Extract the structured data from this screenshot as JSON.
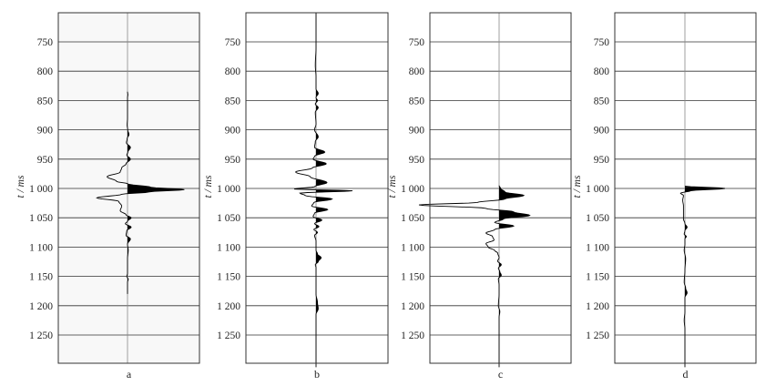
{
  "chart_data": [
    {
      "type": "line",
      "panel_label": "a",
      "ylabel": "t / ms",
      "ylim": [
        700,
        1310
      ],
      "y_inverted": true,
      "yticks": [
        750,
        800,
        850,
        900,
        950,
        1000,
        1050,
        1100,
        1150,
        1200,
        1250
      ],
      "ytick_labels": [
        "750",
        "800",
        "850",
        "900",
        "950",
        "1 000",
        "1 050",
        "1 100",
        "1 150",
        "1 200",
        "1 250"
      ],
      "grid": true,
      "background": "#f8f8f8",
      "trace": [
        [
          835,
          0
        ],
        [
          840,
          0.5
        ],
        [
          845,
          0
        ],
        [
          880,
          0
        ],
        [
          892,
          -0.5
        ],
        [
          900,
          0.3
        ],
        [
          908,
          2
        ],
        [
          915,
          -0.5
        ],
        [
          922,
          -1.5
        ],
        [
          930,
          4
        ],
        [
          938,
          0.5
        ],
        [
          943,
          -1
        ],
        [
          950,
          4
        ],
        [
          958,
          -2
        ],
        [
          965,
          -8
        ],
        [
          972,
          -10
        ],
        [
          980,
          -28
        ],
        [
          988,
          -15
        ],
        [
          992,
          0
        ],
        [
          998,
          32
        ],
        [
          1002,
          78
        ],
        [
          1006,
          30
        ],
        [
          1010,
          -8
        ],
        [
          1016,
          -42
        ],
        [
          1022,
          -12
        ],
        [
          1030,
          -8
        ],
        [
          1038,
          -10
        ],
        [
          1045,
          -2
        ],
        [
          1050,
          5
        ],
        [
          1056,
          0
        ],
        [
          1060,
          -3
        ],
        [
          1066,
          5
        ],
        [
          1072,
          -1
        ],
        [
          1080,
          -2
        ],
        [
          1086,
          4
        ],
        [
          1095,
          0
        ],
        [
          1105,
          1
        ],
        [
          1120,
          0
        ],
        [
          1145,
          0
        ],
        [
          1150,
          -1
        ],
        [
          1155,
          1
        ],
        [
          1160,
          0
        ],
        [
          1180,
          0
        ]
      ]
    },
    {
      "type": "line",
      "panel_label": "b",
      "ylabel": "t / ms",
      "ylim": [
        700,
        1310
      ],
      "y_inverted": true,
      "yticks": [
        750,
        800,
        850,
        900,
        950,
        1000,
        1050,
        1100,
        1150,
        1200,
        1250
      ],
      "ytick_labels": [
        "750",
        "800",
        "850",
        "900",
        "950",
        "1 000",
        "1 050",
        "1 100",
        "1 150",
        "1 200",
        "1 250"
      ],
      "grid": true,
      "background": "#ffffff",
      "trace": [
        [
          700,
          0
        ],
        [
          760,
          0
        ],
        [
          790,
          -1
        ],
        [
          810,
          0
        ],
        [
          830,
          0
        ],
        [
          838,
          3
        ],
        [
          845,
          0
        ],
        [
          850,
          2
        ],
        [
          856,
          -1
        ],
        [
          862,
          3
        ],
        [
          870,
          -1
        ],
        [
          890,
          0
        ],
        [
          900,
          -2
        ],
        [
          912,
          3
        ],
        [
          920,
          -1
        ],
        [
          930,
          -2
        ],
        [
          938,
          12
        ],
        [
          945,
          -2
        ],
        [
          950,
          -4
        ],
        [
          958,
          14
        ],
        [
          965,
          -5
        ],
        [
          972,
          -28
        ],
        [
          980,
          -8
        ],
        [
          990,
          15
        ],
        [
          997,
          -2
        ],
        [
          1001,
          -30
        ],
        [
          1004,
          50
        ],
        [
          1008,
          -22
        ],
        [
          1012,
          -15
        ],
        [
          1018,
          22
        ],
        [
          1024,
          -3
        ],
        [
          1030,
          -6
        ],
        [
          1036,
          16
        ],
        [
          1042,
          -2
        ],
        [
          1048,
          -4
        ],
        [
          1054,
          8
        ],
        [
          1060,
          -2
        ],
        [
          1065,
          4
        ],
        [
          1070,
          -3
        ],
        [
          1075,
          2
        ],
        [
          1080,
          -2
        ],
        [
          1090,
          0
        ],
        [
          1105,
          0
        ],
        [
          1112,
          2
        ],
        [
          1118,
          7
        ],
        [
          1125,
          3
        ],
        [
          1130,
          -1
        ],
        [
          1135,
          0
        ],
        [
          1180,
          0
        ],
        [
          1195,
          2
        ],
        [
          1205,
          3
        ],
        [
          1215,
          0
        ],
        [
          1240,
          0
        ],
        [
          1305,
          0
        ]
      ]
    },
    {
      "type": "line",
      "panel_label": "c",
      "ylabel": "t / ms",
      "ylim": [
        700,
        1310
      ],
      "y_inverted": true,
      "yticks": [
        750,
        800,
        850,
        900,
        950,
        1000,
        1050,
        1100,
        1150,
        1200,
        1250
      ],
      "ytick_labels": [
        "750",
        "800",
        "850",
        "900",
        "950",
        "1 000",
        "1 050",
        "1 100",
        "1 150",
        "1 200",
        "1 250"
      ],
      "grid": true,
      "background": "#ffffff",
      "trace": [
        [
          995,
          0
        ],
        [
          1000,
          2
        ],
        [
          1006,
          8
        ],
        [
          1012,
          34
        ],
        [
          1018,
          8
        ],
        [
          1024,
          -30
        ],
        [
          1028,
          -110
        ],
        [
          1034,
          -18
        ],
        [
          1040,
          20
        ],
        [
          1046,
          42
        ],
        [
          1052,
          6
        ],
        [
          1058,
          -6
        ],
        [
          1064,
          20
        ],
        [
          1070,
          -6
        ],
        [
          1076,
          -18
        ],
        [
          1082,
          -9
        ],
        [
          1088,
          -7
        ],
        [
          1094,
          -18
        ],
        [
          1100,
          -15
        ],
        [
          1106,
          -6
        ],
        [
          1110,
          -2
        ],
        [
          1118,
          0
        ],
        [
          1124,
          -2
        ],
        [
          1130,
          3
        ],
        [
          1136,
          -1
        ],
        [
          1142,
          1
        ],
        [
          1148,
          3
        ],
        [
          1154,
          -1
        ],
        [
          1165,
          0
        ],
        [
          1180,
          0
        ],
        [
          1200,
          -1
        ],
        [
          1210,
          1
        ],
        [
          1220,
          0
        ],
        [
          1305,
          0
        ]
      ]
    },
    {
      "type": "line",
      "panel_label": "d",
      "ylabel": "t / ms",
      "ylim": [
        700,
        1310
      ],
      "y_inverted": true,
      "yticks": [
        750,
        800,
        850,
        900,
        950,
        1000,
        1050,
        1100,
        1150,
        1200,
        1250
      ],
      "ytick_labels": [
        "750",
        "800",
        "850",
        "900",
        "950",
        "1 000",
        "1 050",
        "1 100",
        "1 150",
        "1 200",
        "1 250"
      ],
      "grid": true,
      "background": "#ffffff",
      "trace": [
        [
          996,
          0
        ],
        [
          1000,
          55
        ],
        [
          1004,
          8
        ],
        [
          1008,
          -6
        ],
        [
          1012,
          -2
        ],
        [
          1020,
          -3
        ],
        [
          1030,
          -2
        ],
        [
          1042,
          -2
        ],
        [
          1052,
          -2
        ],
        [
          1060,
          0
        ],
        [
          1066,
          3
        ],
        [
          1072,
          0
        ],
        [
          1078,
          -1
        ],
        [
          1082,
          2
        ],
        [
          1086,
          0
        ],
        [
          1095,
          0
        ],
        [
          1105,
          -1
        ],
        [
          1120,
          1
        ],
        [
          1140,
          0
        ],
        [
          1160,
          -1
        ],
        [
          1170,
          1
        ],
        [
          1178,
          3
        ],
        [
          1186,
          0
        ],
        [
          1210,
          0
        ],
        [
          1225,
          -1
        ],
        [
          1240,
          0
        ],
        [
          1305,
          0
        ]
      ]
    }
  ]
}
